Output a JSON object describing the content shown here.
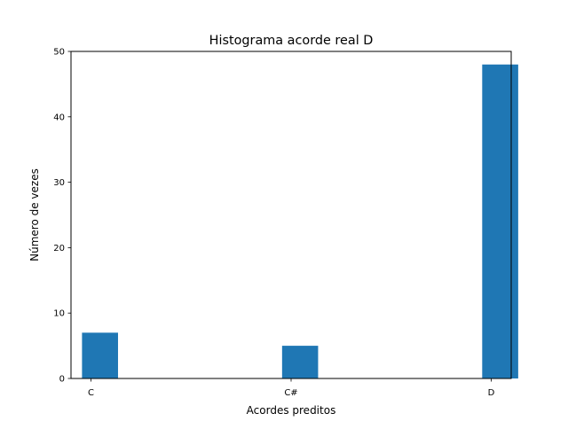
{
  "chart_data": {
    "type": "bar",
    "title": "Histograma acorde real D",
    "xlabel": "Acordes preditos",
    "ylabel": "Número de vezes",
    "categories": [
      "C",
      "C#",
      "D"
    ],
    "values": [
      7,
      5,
      48
    ],
    "x_positions": [
      0,
      1,
      2
    ],
    "xlim": [
      -0.1,
      2.1
    ],
    "ylim": [
      0,
      50
    ],
    "yticks": [
      0,
      10,
      20,
      30,
      40,
      50
    ],
    "bar_color": "#1f77b4",
    "grid": false,
    "legend": false
  }
}
